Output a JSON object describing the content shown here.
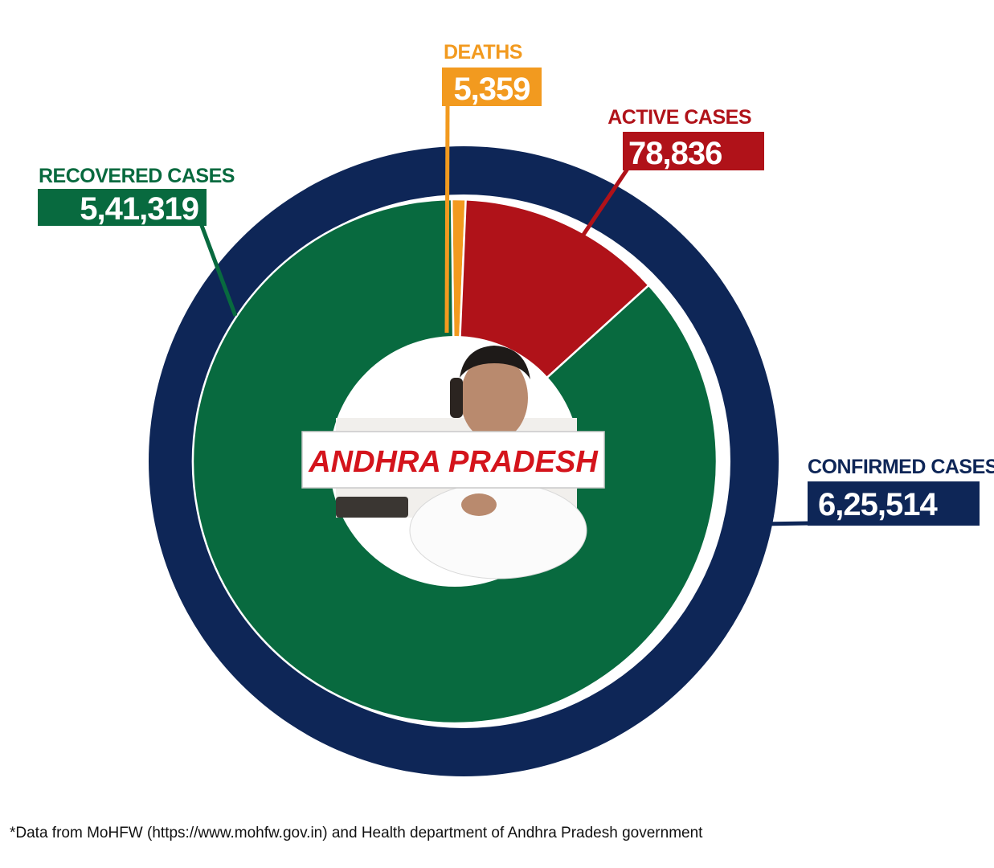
{
  "chart_data": {
    "type": "pie",
    "title": "ANDHRA PRADESH",
    "outer_ring": {
      "name": "CONFIRMED CASES",
      "label": "CONFIRMED CASES",
      "display": "6,25,514",
      "value": 625514,
      "color": "#0e2657"
    },
    "slices": [
      {
        "label": "DEATHS",
        "display": "5,359",
        "value": 5359,
        "color": "#f29a1f"
      },
      {
        "label": "ACTIVE CASES",
        "display": "78,836",
        "value": 78836,
        "color": "#b01219"
      },
      {
        "label": "RECOVERED CASES",
        "display": "5,41,319",
        "value": 541319,
        "color": "#086a3f"
      }
    ]
  },
  "footnote": "*Data from MoHFW (https://www.mohfw.gov.in) and Health department of Andhra Pradesh government"
}
